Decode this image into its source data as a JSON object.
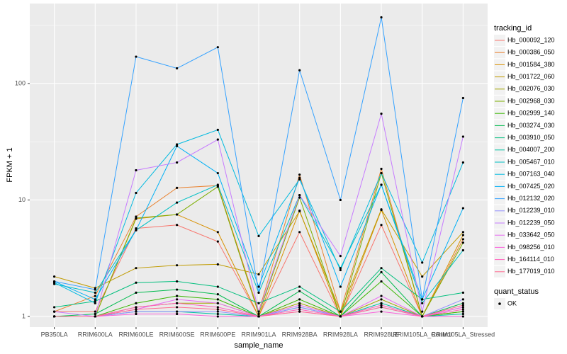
{
  "chart_data": {
    "type": "line",
    "x_label": "sample_name",
    "y_label": "FPKM + 1",
    "categories": [
      "PB350LA",
      "RRIM600LA",
      "RRIM600LE",
      "RRIM600SE",
      "RRIM600PE",
      "RRIM901LA",
      "RRIM928BA",
      "RRIM928LA",
      "RRIM928LE",
      "RRIM105LA_Control",
      "RRIM105LA_Stressed"
    ],
    "ylim": [
      0.81,
      486
    ],
    "yticks": [
      1,
      10,
      100
    ],
    "log_y": true,
    "grid": true,
    "legend_title": "tracking_id",
    "legend_position": "right",
    "point_legend_title": "quant_status",
    "point_legend_label": "OK",
    "point_color": "#000000",
    "series": [
      {
        "name": "Hb_000092_120",
        "color": "#F8766D",
        "values": [
          1.1,
          1.1,
          5.7,
          6.1,
          4.4,
          1.0,
          5.3,
          1.0,
          6.1,
          1.0,
          1.2
        ]
      },
      {
        "name": "Hb_000386_050",
        "color": "#EA8331",
        "values": [
          1.1,
          1.5,
          7.2,
          12.7,
          13.3,
          1.1,
          16.5,
          1.1,
          18.5,
          1.0,
          4.6
        ]
      },
      {
        "name": "Hb_001584_380",
        "color": "#D89000",
        "values": [
          1.0,
          1.0,
          6.9,
          7.5,
          5.3,
          1.0,
          8.1,
          1.0,
          8.2,
          1.0,
          5.0
        ]
      },
      {
        "name": "Hb_001722_060",
        "color": "#C09B00",
        "values": [
          2.2,
          1.75,
          2.6,
          2.75,
          2.8,
          2.3,
          8.0,
          1.1,
          8.3,
          2.2,
          5.3
        ]
      },
      {
        "name": "Hb_002076_030",
        "color": "#A3A500",
        "values": [
          1.0,
          1.0,
          1.2,
          1.3,
          1.3,
          1.0,
          1.3,
          1.0,
          1.4,
          1.0,
          1.1
        ]
      },
      {
        "name": "Hb_002968_030",
        "color": "#7CAE00",
        "values": [
          1.0,
          1.0,
          7.0,
          7.5,
          13.0,
          1.05,
          10.5,
          1.0,
          17.0,
          1.0,
          4.3
        ]
      },
      {
        "name": "Hb_002999_140",
        "color": "#39B600",
        "values": [
          1.0,
          1.0,
          1.3,
          1.5,
          1.4,
          1.0,
          1.4,
          1.0,
          2.0,
          1.0,
          1.1
        ]
      },
      {
        "name": "Hb_003274_030",
        "color": "#00BB4E",
        "values": [
          1.0,
          1.05,
          1.6,
          1.7,
          1.55,
          1.0,
          1.65,
          1.0,
          2.4,
          1.0,
          1.3
        ]
      },
      {
        "name": "Hb_003910_050",
        "color": "#00BF7D",
        "values": [
          1.2,
          1.35,
          1.95,
          2.0,
          1.8,
          1.3,
          1.8,
          1.1,
          2.6,
          1.4,
          1.6
        ]
      },
      {
        "name": "Hb_004007_200",
        "color": "#00C1A3",
        "values": [
          1.0,
          1.0,
          1.1,
          1.1,
          1.05,
          1.0,
          1.2,
          1.0,
          1.3,
          1.0,
          1.05
        ]
      },
      {
        "name": "Hb_005467_010",
        "color": "#00BFC4",
        "values": [
          1.9,
          1.6,
          5.5,
          9.5,
          13.5,
          1.6,
          11.0,
          2.6,
          13.5,
          1.3,
          3.7
        ]
      },
      {
        "name": "Hb_007163_040",
        "color": "#00BAE0",
        "values": [
          1.95,
          1.3,
          11.5,
          30.0,
          40.0,
          4.9,
          15.0,
          2.5,
          17.0,
          2.9,
          21.0
        ]
      },
      {
        "name": "Hb_007425_020",
        "color": "#00B0F6",
        "values": [
          2.0,
          1.4,
          5.5,
          29.0,
          17.0,
          1.8,
          15.5,
          1.8,
          13.5,
          1.4,
          8.5
        ]
      },
      {
        "name": "Hb_012132_020",
        "color": "#35A2FF",
        "values": [
          2.0,
          1.7,
          170,
          135,
          205,
          1.6,
          130,
          10.0,
          370,
          1.4,
          75
        ]
      },
      {
        "name": "Hb_012239_010",
        "color": "#9590FF",
        "values": [
          1.0,
          1.0,
          1.1,
          1.1,
          1.1,
          1.0,
          1.2,
          1.0,
          1.2,
          1.0,
          1.4
        ]
      },
      {
        "name": "Hb_012239_050",
        "color": "#C77CFF",
        "values": [
          1.1,
          1.0,
          18.0,
          21.0,
          33.0,
          1.1,
          11.0,
          3.3,
          55.0,
          1.1,
          35.0
        ]
      },
      {
        "name": "Hb_033642_050",
        "color": "#E76BF3",
        "values": [
          1.0,
          1.0,
          1.15,
          1.4,
          1.3,
          1.0,
          1.25,
          1.0,
          1.5,
          1.0,
          1.2
        ]
      },
      {
        "name": "Hb_098256_010",
        "color": "#FA62DB",
        "values": [
          1.0,
          1.0,
          1.05,
          1.05,
          1.0,
          1.0,
          1.1,
          1.0,
          1.1,
          1.0,
          1.0
        ]
      },
      {
        "name": "Hb_164114_010",
        "color": "#FF62BC",
        "values": [
          1.0,
          1.0,
          1.2,
          1.3,
          1.2,
          1.0,
          1.15,
          1.0,
          1.25,
          1.0,
          1.15
        ]
      },
      {
        "name": "Hb_177019_010",
        "color": "#FF6C91",
        "values": [
          1.0,
          1.0,
          1.15,
          1.2,
          1.15,
          1.0,
          1.1,
          1.0,
          1.2,
          1.0,
          1.25
        ]
      }
    ]
  }
}
